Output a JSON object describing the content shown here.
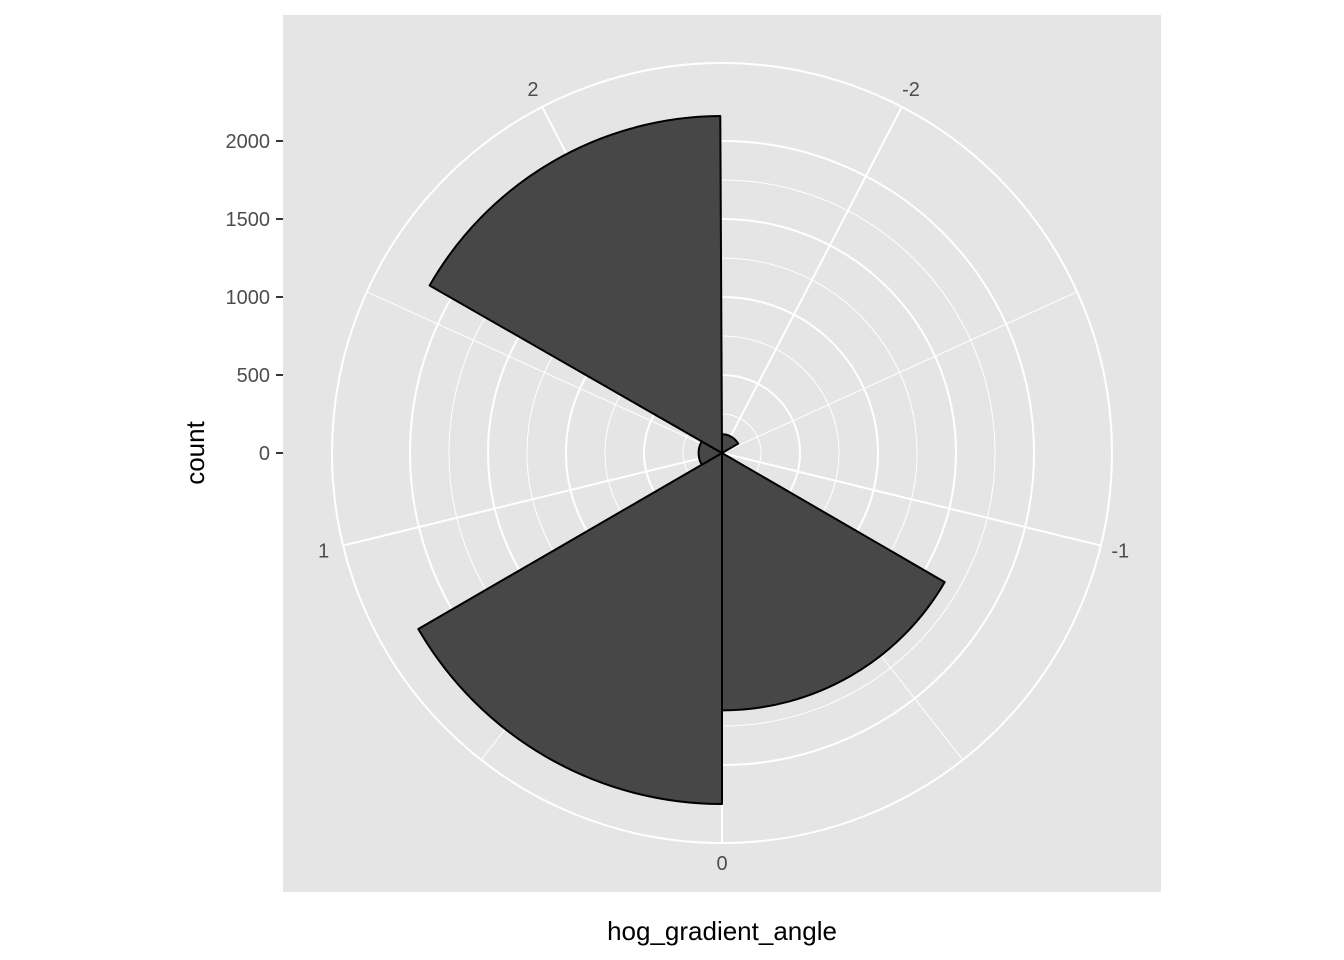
{
  "chart_data": {
    "type": "bar",
    "coord": "polar",
    "xlabel": "hog_gradient_angle",
    "ylabel": "count",
    "theta_breaks": [
      -2,
      -1,
      0,
      1,
      2
    ],
    "theta_labels": [
      "-2",
      "-1",
      "0",
      "1",
      "2"
    ],
    "r_breaks": [
      0,
      500,
      1000,
      1500,
      2000
    ],
    "r_labels": [
      "0",
      "500",
      "1000",
      "1500",
      "2000"
    ],
    "x_range": [
      -2.36,
      2.36
    ],
    "r_max": 2500,
    "bars": [
      {
        "x_min": -0.7854,
        "x_max": 0.0,
        "count": 1650
      },
      {
        "x_min": 0.0,
        "x_max": 0.7854,
        "count": 2250
      },
      {
        "x_min": 0.7854,
        "x_max": 1.5708,
        "count": 150
      },
      {
        "x_min": 1.5708,
        "x_max": 2.3562,
        "count": 2160
      },
      {
        "x_min": -2.3562,
        "x_max": -1.5708,
        "count": 120
      }
    ],
    "grid": true,
    "colors": {
      "panel": "#e5e5e5",
      "grid": "#ffffff",
      "bar_fill": "#474747",
      "bar_stroke": "#000000"
    }
  }
}
